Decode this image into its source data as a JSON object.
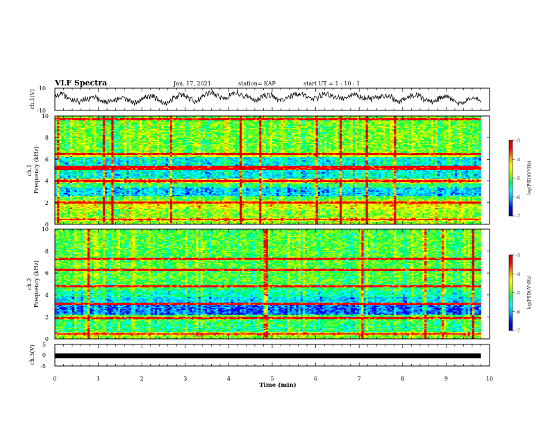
{
  "header": {
    "title": "VLF Spectra",
    "date": "Jan. 17, 2021",
    "station": "station= KAP",
    "start": "start  UT =   1 : 10 : 1"
  },
  "colors": {
    "trace": "#000000",
    "axes": "#000000",
    "colormap": [
      "#00007f",
      "#0000ff",
      "#00a0ff",
      "#00ffff",
      "#00ff60",
      "#a0ff00",
      "#ffff00",
      "#ff9000",
      "#ff0000",
      "#cc0000"
    ]
  },
  "chart_data": [
    {
      "type": "line",
      "panel": "ch1-voltage",
      "ylabel": "ch.1(V)",
      "ylim": [
        -10,
        10
      ],
      "yticks": [
        "10",
        "-10"
      ],
      "xlim": [
        0,
        10
      ],
      "description_shape": "noisy waveform oscillating roughly between -6 and 8 V over 0–9.8 min"
    },
    {
      "type": "heatmap",
      "panel": "ch1-spectrogram",
      "ylabel_line1": "ch.1",
      "ylabel_line2": "Frequency  (kHz)",
      "ylim": [
        0,
        10
      ],
      "yticks": [
        "0",
        "2",
        "4",
        "6",
        "8",
        "10"
      ],
      "xlim": [
        0,
        10
      ],
      "data_extent_min": 9.8,
      "colorbar": {
        "label": "log(PSD)(V²/Hz)",
        "range": [
          -7,
          -3
        ],
        "ticks": [
          "-3",
          "-4",
          "-5",
          "-6",
          "-7"
        ]
      },
      "bands_khz": [
        {
          "from": 0.0,
          "to": 0.3,
          "level": 0.55
        },
        {
          "from": 0.3,
          "to": 0.6,
          "level": 0.7
        },
        {
          "from": 0.6,
          "to": 1.4,
          "level": 0.55
        },
        {
          "from": 1.4,
          "to": 2.2,
          "level": 0.62
        },
        {
          "from": 2.2,
          "to": 2.6,
          "level": 0.5
        },
        {
          "from": 2.6,
          "to": 3.4,
          "level": 0.3
        },
        {
          "from": 3.4,
          "to": 3.8,
          "level": 0.45
        },
        {
          "from": 3.8,
          "to": 4.2,
          "level": 0.7
        },
        {
          "from": 4.2,
          "to": 5.0,
          "level": 0.35
        },
        {
          "from": 5.0,
          "to": 5.4,
          "level": 0.72
        },
        {
          "from": 5.4,
          "to": 6.2,
          "level": 0.35
        },
        {
          "from": 6.2,
          "to": 6.6,
          "level": 0.6
        },
        {
          "from": 6.6,
          "to": 10.0,
          "level": 0.52
        }
      ],
      "lines_khz": [
        4.0,
        5.1,
        5.3,
        6.5,
        2.0,
        0.45,
        9.7
      ]
    },
    {
      "type": "heatmap",
      "panel": "ch2-spectrogram",
      "ylabel_line1": "ch.2",
      "ylabel_line2": "Frequency  (kHz)",
      "ylim": [
        0,
        10
      ],
      "yticks": [
        "0",
        "2",
        "4",
        "6",
        "8",
        "10"
      ],
      "xlim": [
        0,
        10
      ],
      "data_extent_min": 9.8,
      "colorbar": {
        "label": "log(PSD)(V²/Hz)",
        "range": [
          -7,
          -3
        ],
        "ticks": [
          "-3",
          "-4",
          "-5",
          "-6",
          "-7"
        ]
      },
      "bands_khz": [
        {
          "from": 0.0,
          "to": 0.3,
          "level": 0.55
        },
        {
          "from": 0.3,
          "to": 0.6,
          "level": 0.7
        },
        {
          "from": 0.6,
          "to": 1.6,
          "level": 0.45
        },
        {
          "from": 1.6,
          "to": 2.2,
          "level": 0.5
        },
        {
          "from": 2.2,
          "to": 3.2,
          "level": 0.22
        },
        {
          "from": 3.2,
          "to": 3.8,
          "level": 0.32
        },
        {
          "from": 3.8,
          "to": 4.4,
          "level": 0.4
        },
        {
          "from": 4.4,
          "to": 5.2,
          "level": 0.48
        },
        {
          "from": 5.2,
          "to": 6.4,
          "level": 0.5
        },
        {
          "from": 6.4,
          "to": 10.0,
          "level": 0.5
        }
      ],
      "lines_khz": [
        3.2,
        4.8,
        6.3,
        7.3,
        1.9,
        0.45
      ]
    },
    {
      "type": "line",
      "panel": "ch3-voltage",
      "ylabel": "ch.3(V)",
      "ylim": [
        -5,
        5
      ],
      "yticks": [
        "5",
        "0",
        "-5"
      ],
      "xlim": [
        0,
        10
      ],
      "data_extent_min": 9.8,
      "value": -0.3
    }
  ],
  "xaxis": {
    "label": "Time  (min)",
    "ticks": [
      "0",
      "1",
      "2",
      "3",
      "4",
      "5",
      "6",
      "7",
      "8",
      "9",
      "10"
    ]
  }
}
